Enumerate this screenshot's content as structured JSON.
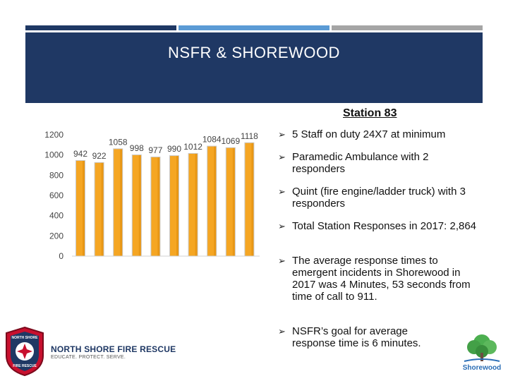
{
  "colors": {
    "bar_top_1": "#1f3864",
    "bar_top_2": "#5b9bd5",
    "bar_top_3": "#a5a5a5",
    "header_bg": "#1f3864",
    "bar_fill": "#f5a623",
    "bar_edge": "#c9c9c9"
  },
  "slide": {
    "title": "NSFR & SHOREWOOD",
    "subtitle": "Station 83"
  },
  "bullets": [
    "5 Staff on duty 24X7 at minimum",
    "Paramedic Ambulance with 2 responders",
    "Quint (fire engine/ladder truck) with 3 responders",
    "Total Station Responses in 2017: 2,864",
    "The average response times to emergent incidents in Shorewood in 2017 was 4 Minutes, 53 seconds from time of call to 911.",
    "NSFR’s goal for average response time is 6 minutes."
  ],
  "chart_data": {
    "type": "bar",
    "categories": [
      "",
      "",
      "",
      "",
      "",
      "",
      "",
      "",
      "",
      ""
    ],
    "values": [
      942,
      922,
      1058,
      998,
      977,
      990,
      1012,
      1084,
      1069,
      1118
    ],
    "value_labels": [
      "942",
      "922",
      "1058",
      "998",
      "977",
      "990",
      "1012",
      "1084",
      "1069",
      "1118"
    ],
    "ylim": [
      0,
      1200
    ],
    "yticks": [
      "1200",
      "1000",
      "800",
      "600",
      "400",
      "200",
      "0"
    ],
    "title": "",
    "xlabel": "",
    "ylabel": "",
    "grid": false
  },
  "logos": {
    "nsfr_name": "NORTH SHORE FIRE RESCUE",
    "nsfr_tagline": "EDUCATE. PROTECT. SERVE.",
    "nsfr_badge_top": "NORTH SHORE",
    "nsfr_badge_bottom": "FIRE RESCUE",
    "shorewood": "Shorewood"
  }
}
